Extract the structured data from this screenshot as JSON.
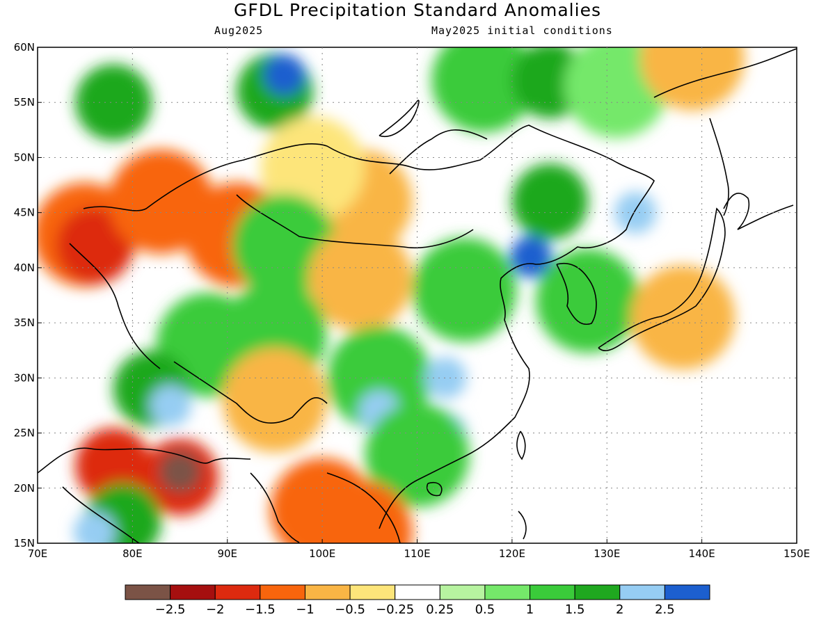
{
  "title": "GFDL Precipitation Standard Anomalies",
  "subtitle_left": "Aug2025",
  "subtitle_right": "May2025 initial conditions",
  "map": {
    "lon_range": [
      70,
      150
    ],
    "lat_range": [
      15,
      60
    ],
    "lon_ticks": [
      "70E",
      "80E",
      "90E",
      "100E",
      "110E",
      "120E",
      "130E",
      "140E",
      "150E"
    ],
    "lat_ticks": [
      "60N",
      "55N",
      "50N",
      "45N",
      "40N",
      "35N",
      "30N",
      "25N",
      "20N",
      "15N"
    ],
    "gridlines": "dotted"
  },
  "colorbar": {
    "colors": [
      "#7b5346",
      "#a50f0f",
      "#dd2a0f",
      "#f8650d",
      "#f9b545",
      "#fde57a",
      "#ffffff",
      "#b7f3a0",
      "#75e86a",
      "#3acb3a",
      "#1fa81f",
      "#96cdf3",
      "#1c5fcf"
    ],
    "labels": [
      "-2.5",
      "-2",
      "-1.5",
      "-1",
      "-0.5",
      "-0.25",
      "0.25",
      "0.5",
      "1",
      "1.5",
      "2",
      "2.5"
    ]
  },
  "anomaly_regions": [
    {
      "name": "siberia-west-wet",
      "lon": 78,
      "lat": 55,
      "value": 1.5
    },
    {
      "name": "siberia-center-wet",
      "lon": 95,
      "lat": 56,
      "value": 1.8
    },
    {
      "name": "baikal-blue",
      "lon": 96,
      "lat": 57.5,
      "value": 2.7
    },
    {
      "name": "north-center-wet",
      "lon": 117,
      "lat": 57,
      "value": 1.2
    },
    {
      "name": "north-east-wet",
      "lon": 124,
      "lat": 57,
      "value": 1.6
    },
    {
      "name": "yakutia-green",
      "lon": 131,
      "lat": 56.5,
      "value": 0.6
    },
    {
      "name": "okhotsk-dry",
      "lon": 139,
      "lat": 59,
      "value": -0.6
    },
    {
      "name": "kazakh-dry",
      "lon": 75,
      "lat": 43,
      "value": -1.4
    },
    {
      "name": "kazakh-dry-core",
      "lon": 76,
      "lat": 42,
      "value": -1.8
    },
    {
      "name": "balkhash-dry",
      "lon": 83,
      "lat": 46,
      "value": -1.3
    },
    {
      "name": "dzungaria-dry",
      "lon": 91,
      "lat": 43,
      "value": -1.2
    },
    {
      "name": "mongolia-dry",
      "lon": 104,
      "lat": 46,
      "value": -0.8
    },
    {
      "name": "mongolia-west-dry",
      "lon": 99,
      "lat": 49,
      "value": -0.4
    },
    {
      "name": "taklamakan-green",
      "lon": 96,
      "lat": 42,
      "value": 1.0
    },
    {
      "name": "gobi-dry",
      "lon": 104,
      "lat": 39,
      "value": -0.6
    },
    {
      "name": "north-china-wet",
      "lon": 115,
      "lat": 38,
      "value": 1.4
    },
    {
      "name": "manchuria-wet",
      "lon": 124,
      "lat": 46,
      "value": 1.7
    },
    {
      "name": "liaoning-blue",
      "lon": 122,
      "lat": 41,
      "value": 2.6
    },
    {
      "name": "primorye-blue",
      "lon": 133,
      "lat": 45,
      "value": 2.2
    },
    {
      "name": "tibet-wet",
      "lon": 88,
      "lat": 33,
      "value": 1.3
    },
    {
      "name": "qinghai-wet",
      "lon": 95,
      "lat": 34,
      "value": 1.2
    },
    {
      "name": "himalaya-wet",
      "lon": 82,
      "lat": 29,
      "value": 1.5
    },
    {
      "name": "nepal-blue",
      "lon": 84,
      "lat": 27.5,
      "value": 2.4
    },
    {
      "name": "yunnan-dry",
      "lon": 95,
      "lat": 28,
      "value": -0.7
    },
    {
      "name": "sichuan-wet",
      "lon": 106,
      "lat": 30,
      "value": 1.4
    },
    {
      "name": "guizhou-blue",
      "lon": 106,
      "lat": 27,
      "value": 2.3
    },
    {
      "name": "hubei-blue",
      "lon": 113,
      "lat": 30,
      "value": 2.2
    },
    {
      "name": "jiangxi-blue",
      "lon": 113,
      "lat": 25,
      "value": 2.0
    },
    {
      "name": "south-china-green",
      "lon": 110,
      "lat": 23,
      "value": 1.1
    },
    {
      "name": "india-central-dry",
      "lon": 78,
      "lat": 22,
      "value": -1.9
    },
    {
      "name": "india-east-dry",
      "lon": 85,
      "lat": 21,
      "value": -1.8
    },
    {
      "name": "india-core-dark",
      "lon": 85,
      "lat": 21.5,
      "value": -2.6
    },
    {
      "name": "india-south-wet",
      "lon": 79,
      "lat": 17,
      "value": 1.5
    },
    {
      "name": "india-south-blue",
      "lon": 76,
      "lat": 16,
      "value": 2.3
    },
    {
      "name": "myanmar-dry",
      "lon": 100,
      "lat": 18,
      "value": -1.2
    },
    {
      "name": "indochina-dry",
      "lon": 104,
      "lat": 16,
      "value": -1.4
    },
    {
      "name": "korea-green",
      "lon": 128,
      "lat": 37,
      "value": 1.0
    },
    {
      "name": "japan-dry",
      "lon": 138,
      "lat": 35.5,
      "value": -0.6
    }
  ]
}
